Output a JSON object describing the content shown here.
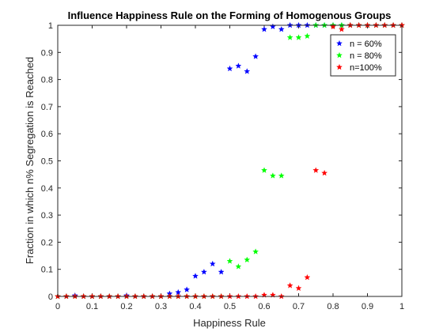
{
  "chart_data": {
    "type": "scatter",
    "title": "Influence Happiness Rule on the Forming of Homogenous Groups",
    "xlabel": "Happiness Rule",
    "ylabel": "Fraction in which n% Segregation is Reached",
    "xlim": [
      0,
      1
    ],
    "ylim": [
      0,
      1
    ],
    "xticks": [
      "0",
      "0.1",
      "0.2",
      "0.3",
      "0.4",
      "0.5",
      "0.6",
      "0.7",
      "0.8",
      "0.9",
      "1"
    ],
    "yticks": [
      "0",
      "0.1",
      "0.2",
      "0.3",
      "0.4",
      "0.5",
      "0.6",
      "0.7",
      "0.8",
      "0.9",
      "1"
    ],
    "grid": false,
    "legend_position": "top-right",
    "marker": "star",
    "series": [
      {
        "name": "n = 60%",
        "color": "#0000ff",
        "x": [
          0,
          0.025,
          0.05,
          0.075,
          0.1,
          0.125,
          0.15,
          0.175,
          0.2,
          0.225,
          0.25,
          0.275,
          0.3,
          0.325,
          0.35,
          0.375,
          0.4,
          0.425,
          0.45,
          0.475,
          0.5,
          0.525,
          0.55,
          0.575,
          0.6,
          0.625,
          0.65,
          0.675,
          0.7,
          0.725,
          0.75,
          0.775,
          0.8,
          0.825,
          0.85,
          0.875,
          0.9,
          0.925,
          0.95,
          0.975,
          1
        ],
        "y": [
          0,
          0,
          0.003,
          0,
          0,
          0,
          0,
          0,
          0.003,
          0,
          0,
          0,
          0,
          0.01,
          0.015,
          0.025,
          0.075,
          0.09,
          0.12,
          0.09,
          0.84,
          0.85,
          0.83,
          0.885,
          0.985,
          0.995,
          0.985,
          1,
          1,
          1,
          1,
          1,
          1,
          1,
          1,
          1,
          1,
          1,
          1,
          1,
          1
        ]
      },
      {
        "name": "n = 80%",
        "color": "#00ff00",
        "x": [
          0,
          0.025,
          0.05,
          0.075,
          0.1,
          0.125,
          0.15,
          0.175,
          0.2,
          0.225,
          0.25,
          0.275,
          0.3,
          0.325,
          0.35,
          0.375,
          0.4,
          0.425,
          0.45,
          0.475,
          0.5,
          0.525,
          0.55,
          0.575,
          0.6,
          0.625,
          0.65,
          0.675,
          0.7,
          0.725,
          0.75,
          0.775,
          0.8,
          0.825,
          0.85,
          0.875,
          0.9,
          0.925,
          0.95,
          0.975,
          1
        ],
        "y": [
          0,
          0,
          0,
          0,
          0,
          0,
          0,
          0,
          0,
          0,
          0,
          0,
          0,
          0,
          0,
          0,
          0,
          0,
          0,
          0,
          0.13,
          0.11,
          0.135,
          0.165,
          0.465,
          0.445,
          0.445,
          0.955,
          0.955,
          0.96,
          1,
          1,
          1,
          1,
          1,
          1,
          1,
          1,
          1,
          1,
          1
        ]
      },
      {
        "name": "n=100%",
        "color": "#ff0000",
        "x": [
          0,
          0.025,
          0.05,
          0.075,
          0.1,
          0.125,
          0.15,
          0.175,
          0.2,
          0.225,
          0.25,
          0.275,
          0.3,
          0.325,
          0.35,
          0.375,
          0.4,
          0.425,
          0.45,
          0.475,
          0.5,
          0.525,
          0.55,
          0.575,
          0.6,
          0.625,
          0.65,
          0.675,
          0.7,
          0.725,
          0.75,
          0.775,
          0.8,
          0.825,
          0.85,
          0.875,
          0.9,
          0.925,
          0.95,
          0.975,
          1
        ],
        "y": [
          0,
          0,
          0,
          0,
          0,
          0,
          0,
          0,
          0,
          0,
          0,
          0,
          0,
          0,
          0,
          0,
          0,
          0,
          0,
          0,
          0,
          0,
          0,
          0,
          0.005,
          0.005,
          0,
          0.04,
          0.03,
          0.07,
          0.465,
          0.455,
          0.995,
          0.985,
          1,
          1,
          1,
          1,
          1,
          1,
          1
        ]
      }
    ]
  }
}
